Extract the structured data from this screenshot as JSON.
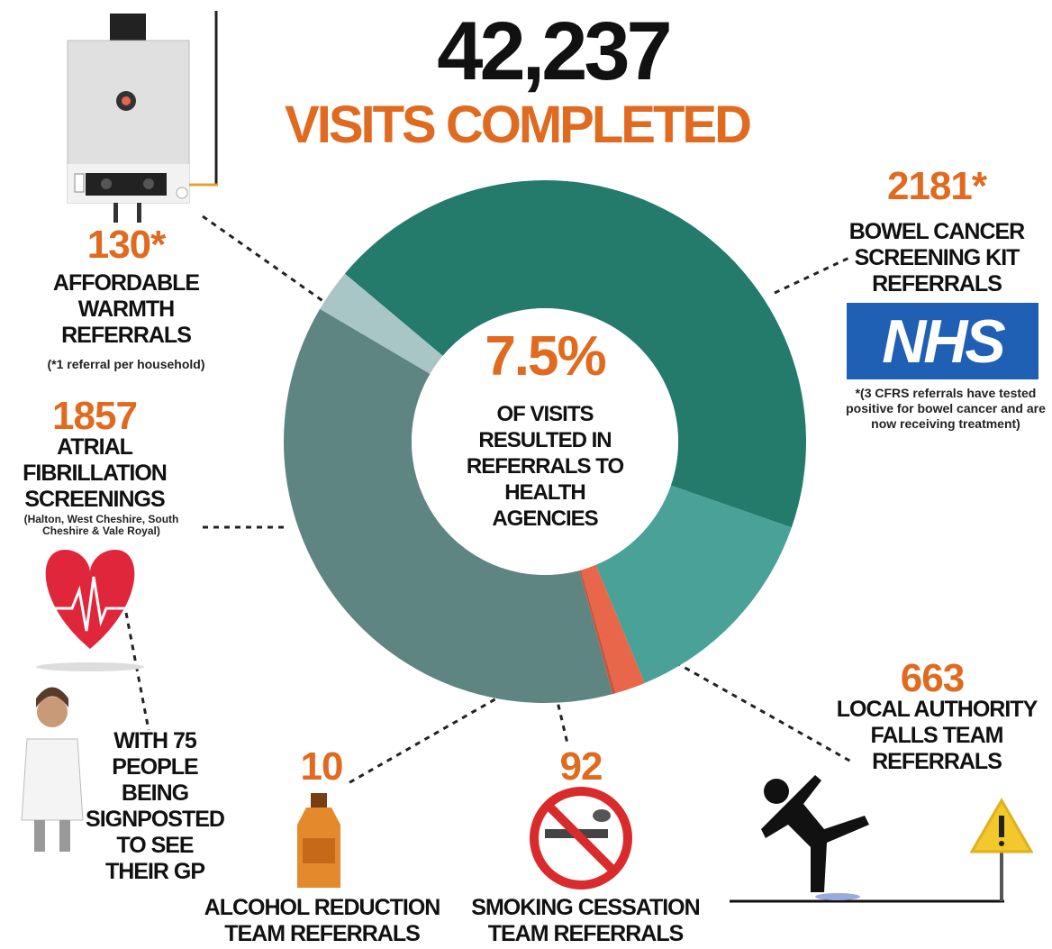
{
  "chart_data": {
    "type": "donut",
    "title": "42,237",
    "subtitle": "VISITS COMPLETED",
    "center_value": "7.5%",
    "center_text": "OF VISITS RESULTED IN REFERRALS TO HEALTH AGENCIES",
    "categories": [
      "BOWEL CANCER SCREENING KIT REFERRALS",
      "LOCAL AUTHORITY FALLS TEAM REFERRALS",
      "SMOKING CESSATION TEAM REFERRALS",
      "ALCOHOL REDUCTION TEAM REFERRALS",
      "ATRIAL FIBRILLATION SCREENINGS",
      "AFFORDABLE WARMTH REFERRALS"
    ],
    "values": [
      2181,
      663,
      92,
      10,
      1857,
      130
    ],
    "value_labels": [
      "2181*",
      "663",
      "92",
      "10",
      "1857",
      "130*"
    ],
    "colors": [
      "#247a6b",
      "#4aa197",
      "#e8664a",
      "#c9553c",
      "#5f8582",
      "#a9c6c6"
    ],
    "notes": [
      "*(3 CFRS referrals have tested positive for bowel cancer and are now receiving treatment)",
      null,
      null,
      null,
      "(Halton, West Cheshire, South Cheshire & Vale Royal)",
      "(*1 referral per household)"
    ],
    "gp_text": "WITH 75 PEOPLE BEING SIGNPOSTED TO SEE THEIR GP",
    "logo_text": "NHS"
  }
}
